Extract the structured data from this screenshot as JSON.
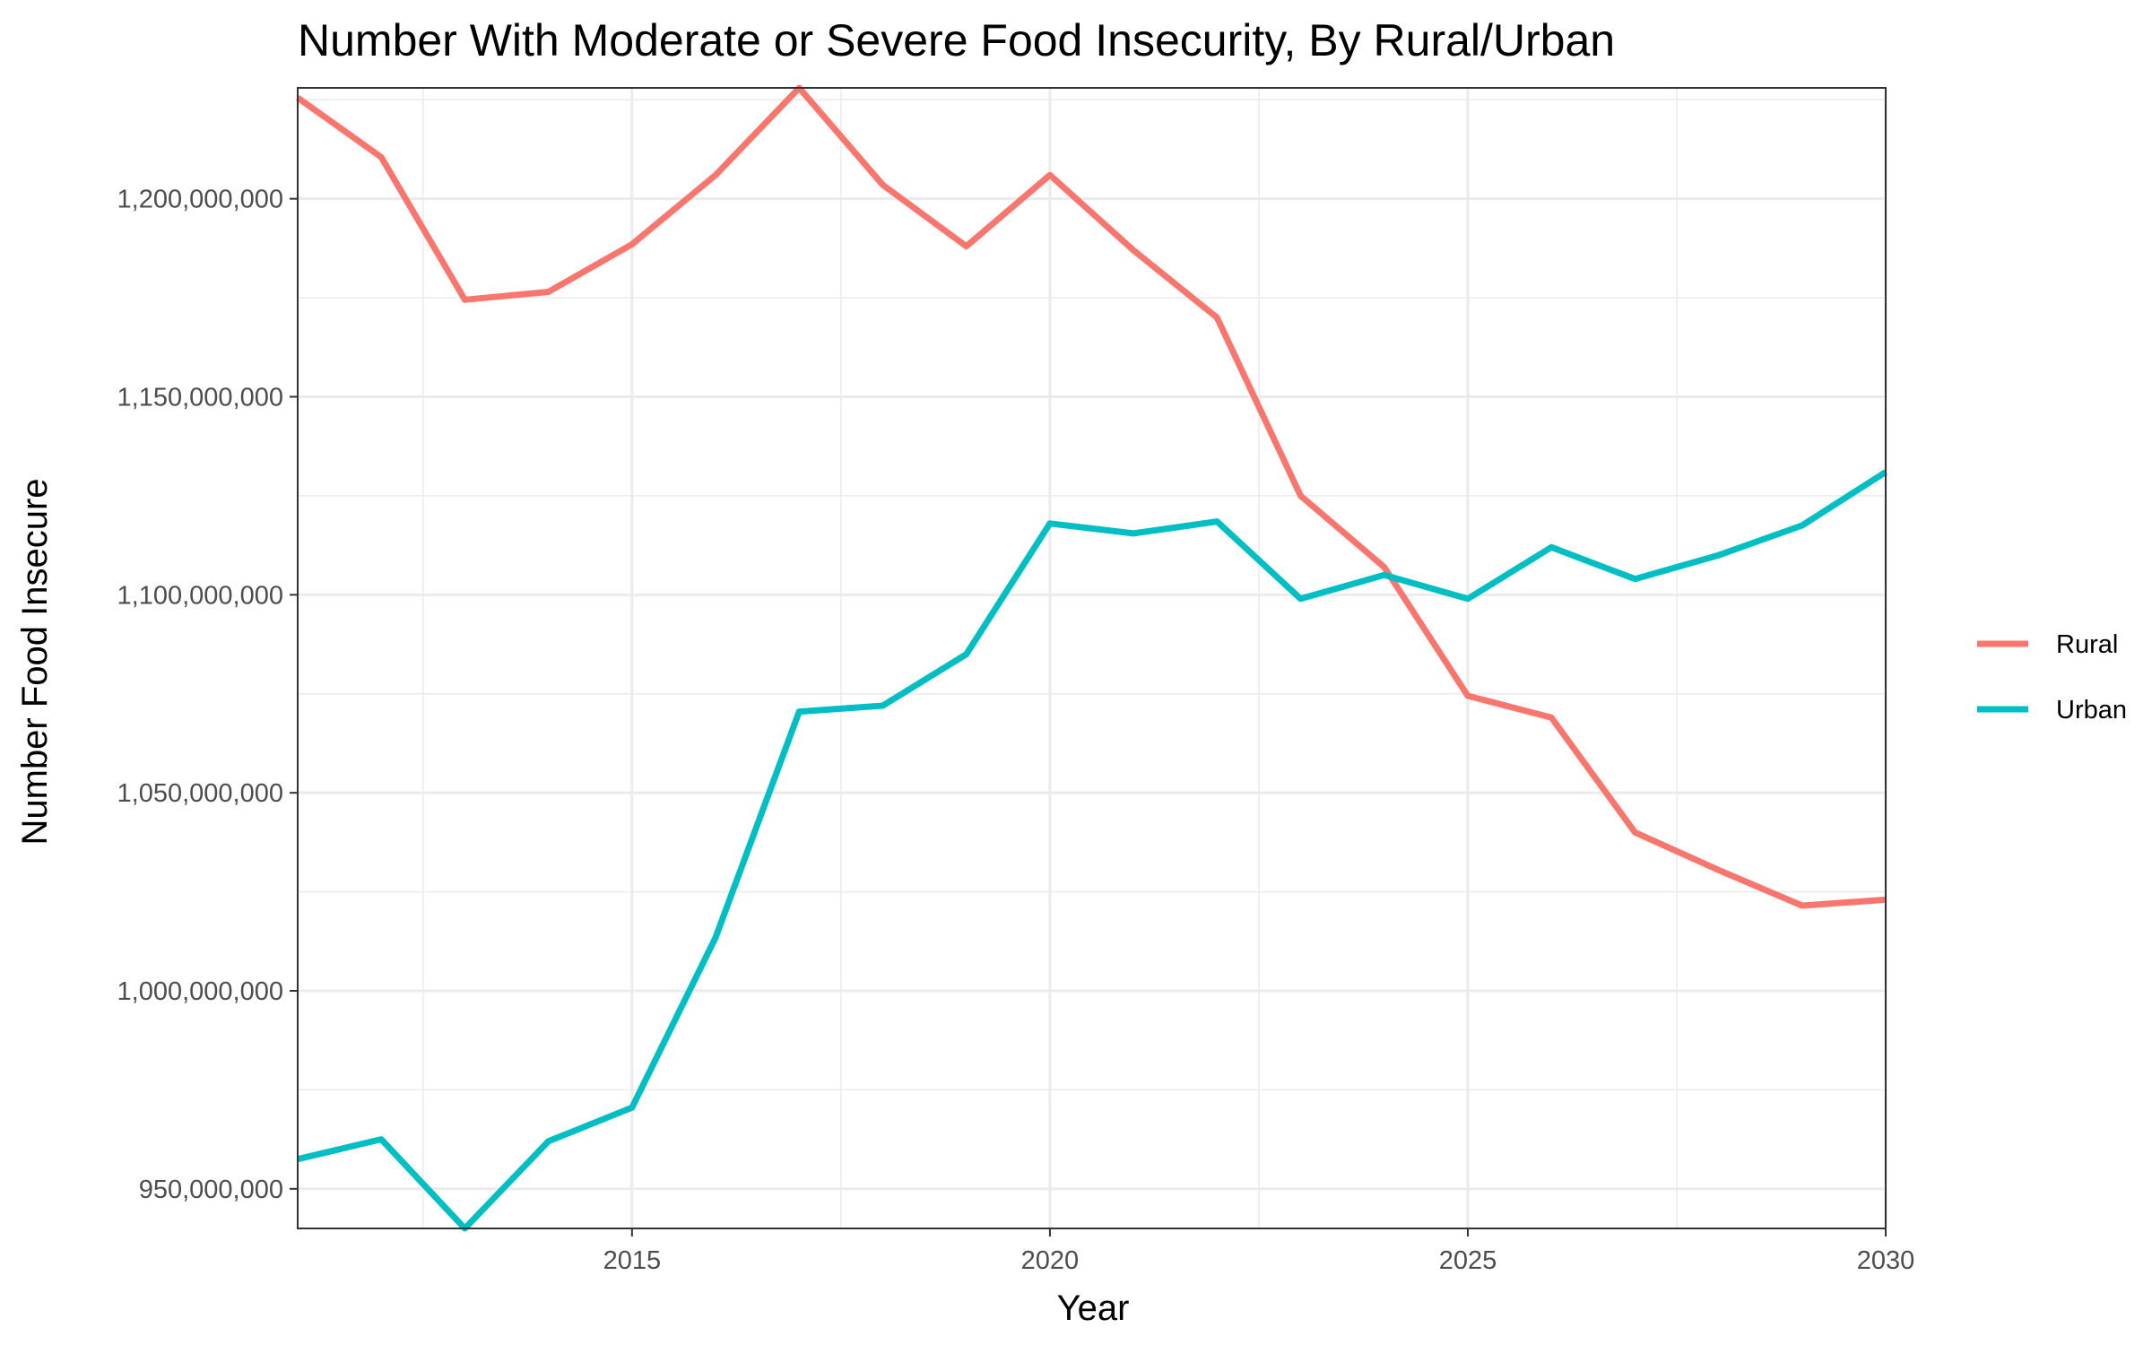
{
  "chart_data": {
    "type": "line",
    "title": "Number With Moderate or Severe Food Insecurity, By Rural/Urban",
    "xlabel": "Year",
    "ylabel": "Number Food Insecure",
    "xlim": [
      2011,
      2030
    ],
    "ylim": [
      940000000,
      1228000000
    ],
    "x_ticks": [
      2015,
      2020,
      2025,
      2030
    ],
    "x_tick_labels": [
      "2015",
      "2020",
      "2025",
      "2030"
    ],
    "y_ticks": [
      950000000,
      1000000000,
      1050000000,
      1100000000,
      1150000000,
      1200000000
    ],
    "y_tick_labels": [
      "950,000,000",
      "1,000,000,000",
      "1,050,000,000",
      "1,100,000,000",
      "1,150,000,000",
      "1,200,000,000"
    ],
    "grid": true,
    "legend_position": "right",
    "x": [
      2011,
      2012,
      2013,
      2014,
      2015,
      2016,
      2017,
      2018,
      2019,
      2020,
      2021,
      2022,
      2023,
      2024,
      2025,
      2026,
      2027,
      2028,
      2029,
      2030
    ],
    "series": [
      {
        "name": "Rural",
        "color": "#F8766D",
        "values": [
          1225500000,
          1210500000,
          1174500000,
          1176500000,
          1188500000,
          1206000000,
          1228000000,
          1203500000,
          1188000000,
          1206000000,
          1187000000,
          1170000000,
          1125000000,
          1107000000,
          1074500000,
          1069000000,
          1040000000,
          1030500000,
          1021500000,
          1023000000
        ]
      },
      {
        "name": "Urban",
        "color": "#00BFC4",
        "values": [
          957500000,
          962500000,
          940000000,
          962000000,
          970500000,
          1013500000,
          1070500000,
          1072000000,
          1085000000,
          1118000000,
          1115500000,
          1118500000,
          1099000000,
          1105000000,
          1099000000,
          1112000000,
          1104000000,
          1110000000,
          1117500000,
          1131000000
        ]
      }
    ]
  }
}
